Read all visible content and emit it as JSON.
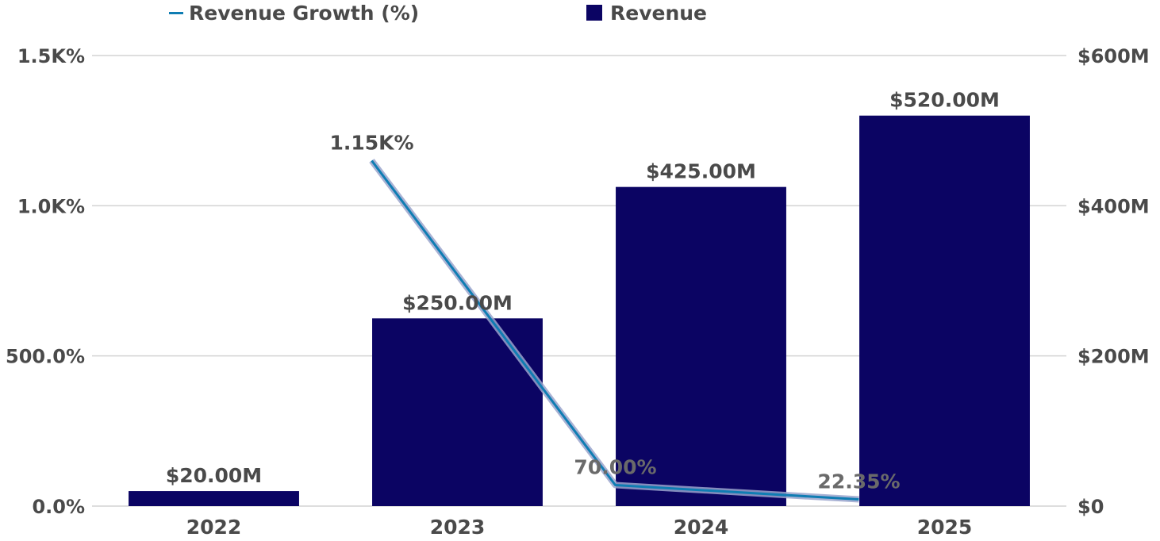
{
  "legend": {
    "growth_label": "Revenue Growth (%)",
    "revenue_label": "Revenue"
  },
  "colors": {
    "bar": "#0b0463",
    "line": "#0f7db3",
    "line_halo": "#9aa4cc",
    "grid": "#d3d3d3",
    "text": "#4a4a4a",
    "growth_label_light": "#6a6a6a"
  },
  "chart_data": {
    "type": "bar",
    "categories": [
      "2022",
      "2023",
      "2024",
      "2025"
    ],
    "series": [
      {
        "name": "Revenue",
        "type": "bar",
        "axis": "right",
        "values": [
          20,
          250,
          425,
          520
        ],
        "labels": [
          "$20.00M",
          "$250.00M",
          "$425.00M",
          "$520.00M"
        ]
      },
      {
        "name": "Revenue Growth (%)",
        "type": "line",
        "axis": "left",
        "values": [
          null,
          1150,
          70,
          22.35
        ],
        "labels": [
          "",
          "1.15K%",
          "70.00%",
          "22.35%"
        ]
      }
    ],
    "y_left": {
      "ticks": [
        0,
        500,
        1000,
        1500
      ],
      "tick_labels": [
        "0.0%",
        "500.0%",
        "1.0K%",
        "1.5K%"
      ],
      "ylim": [
        0,
        1500
      ]
    },
    "y_right": {
      "ticks": [
        0,
        200,
        400,
        600
      ],
      "tick_labels": [
        "$0",
        "$200M",
        "$400M",
        "$600M"
      ],
      "ylim": [
        0,
        600
      ]
    },
    "grid": true,
    "legend_position": "top-left"
  }
}
